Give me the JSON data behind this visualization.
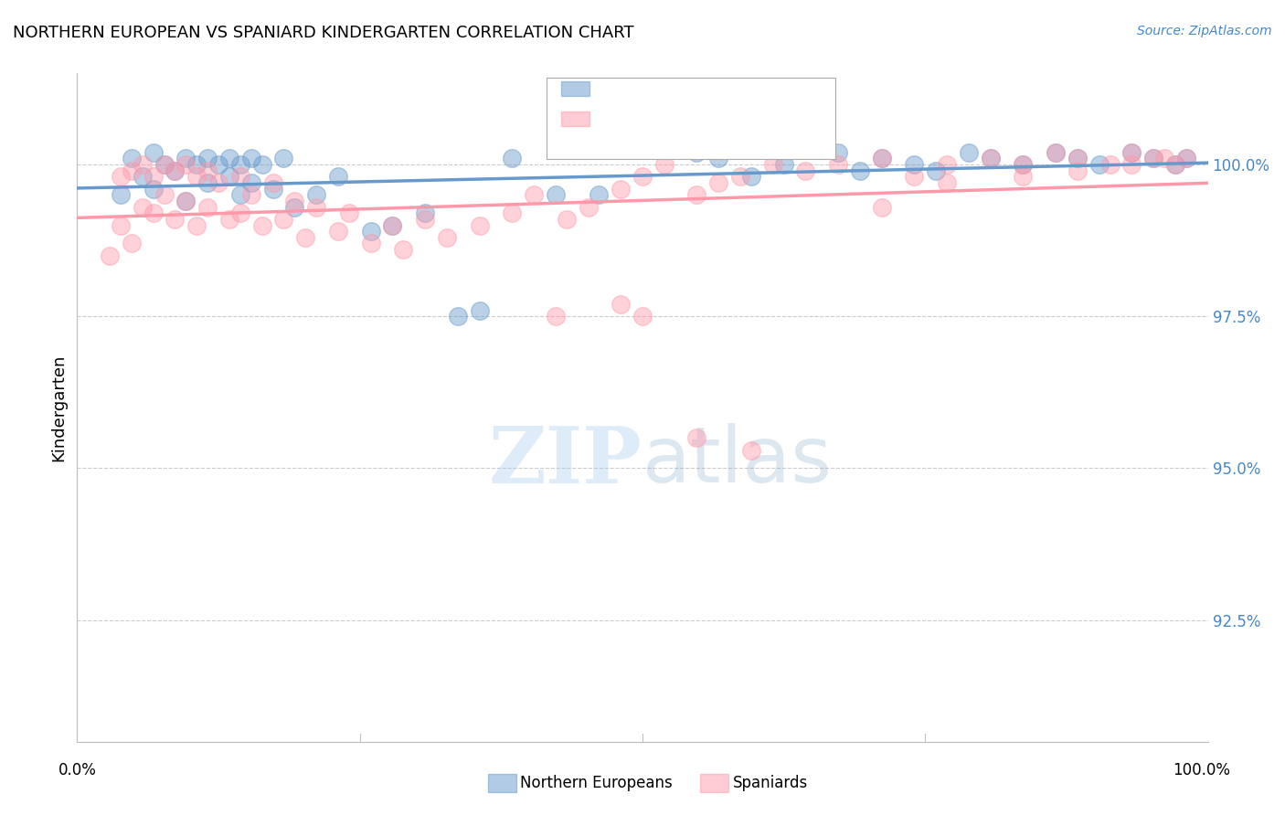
{
  "title": "NORTHERN EUROPEAN VS SPANIARD KINDERGARTEN CORRELATION CHART",
  "source": "Source: ZipAtlas.com",
  "ylabel": "Kindergarten",
  "yticks": [
    100.0,
    97.5,
    95.0,
    92.5
  ],
  "ytick_labels": [
    "100.0%",
    "97.5%",
    "95.0%",
    "92.5%"
  ],
  "ymin": 90.5,
  "ymax": 101.5,
  "xmin": -2,
  "xmax": 102,
  "blue_color": "#6699cc",
  "pink_color": "#ff99aa",
  "blue_label": "Northern Europeans",
  "pink_label": "Spaniards",
  "blue_scatter_x": [
    2,
    3,
    4,
    5,
    5,
    6,
    7,
    8,
    8,
    9,
    10,
    10,
    11,
    12,
    12,
    13,
    13,
    14,
    14,
    15,
    16,
    17,
    18,
    20,
    22,
    25,
    27,
    30,
    33,
    35,
    38,
    42,
    46,
    55,
    57,
    60,
    63,
    68,
    70,
    72,
    75,
    77,
    80,
    82,
    85,
    88,
    90,
    92,
    95,
    97,
    99,
    100
  ],
  "blue_scatter_y": [
    99.5,
    100.1,
    99.8,
    100.2,
    99.6,
    100.0,
    99.9,
    100.1,
    99.4,
    100.0,
    99.7,
    100.1,
    100.0,
    100.1,
    99.8,
    100.0,
    99.5,
    100.1,
    99.7,
    100.0,
    99.6,
    100.1,
    99.3,
    99.5,
    99.8,
    98.9,
    99.0,
    99.2,
    97.5,
    97.6,
    100.1,
    99.5,
    99.5,
    100.2,
    100.1,
    99.8,
    100.0,
    100.2,
    99.9,
    100.1,
    100.0,
    99.9,
    100.2,
    100.1,
    100.0,
    100.2,
    100.1,
    100.0,
    100.2,
    100.1,
    100.0,
    100.1
  ],
  "pink_scatter_x": [
    1,
    2,
    2,
    3,
    3,
    4,
    4,
    5,
    5,
    6,
    6,
    7,
    7,
    8,
    8,
    9,
    9,
    10,
    10,
    11,
    12,
    13,
    13,
    14,
    15,
    16,
    17,
    18,
    19,
    20,
    22,
    23,
    25,
    27,
    28,
    30,
    32,
    35,
    38,
    40,
    43,
    45,
    48,
    50,
    52,
    55,
    57,
    59,
    62,
    65,
    68,
    72,
    75,
    78,
    82,
    85,
    88,
    90,
    93,
    95,
    97,
    99,
    100,
    42,
    48,
    50,
    55,
    60,
    72,
    78,
    85,
    90,
    95,
    98
  ],
  "pink_scatter_y": [
    98.5,
    99.8,
    99.0,
    99.9,
    98.7,
    100.0,
    99.3,
    99.8,
    99.2,
    100.0,
    99.5,
    99.9,
    99.1,
    100.0,
    99.4,
    99.8,
    99.0,
    99.9,
    99.3,
    99.7,
    99.1,
    99.8,
    99.2,
    99.5,
    99.0,
    99.7,
    99.1,
    99.4,
    98.8,
    99.3,
    98.9,
    99.2,
    98.7,
    99.0,
    98.6,
    99.1,
    98.8,
    99.0,
    99.2,
    99.5,
    99.1,
    99.3,
    99.6,
    99.8,
    100.0,
    99.5,
    99.7,
    99.8,
    100.0,
    99.9,
    100.0,
    100.1,
    99.8,
    100.0,
    100.1,
    100.0,
    100.2,
    100.1,
    100.0,
    100.2,
    100.1,
    100.0,
    100.1,
    97.5,
    97.7,
    97.5,
    95.5,
    95.3,
    99.3,
    99.7,
    99.8,
    99.9,
    100.0,
    100.1
  ],
  "watermark_zip": "ZIP",
  "watermark_atlas": "atlas",
  "grid_color": "#cccccc",
  "background_color": "#ffffff"
}
